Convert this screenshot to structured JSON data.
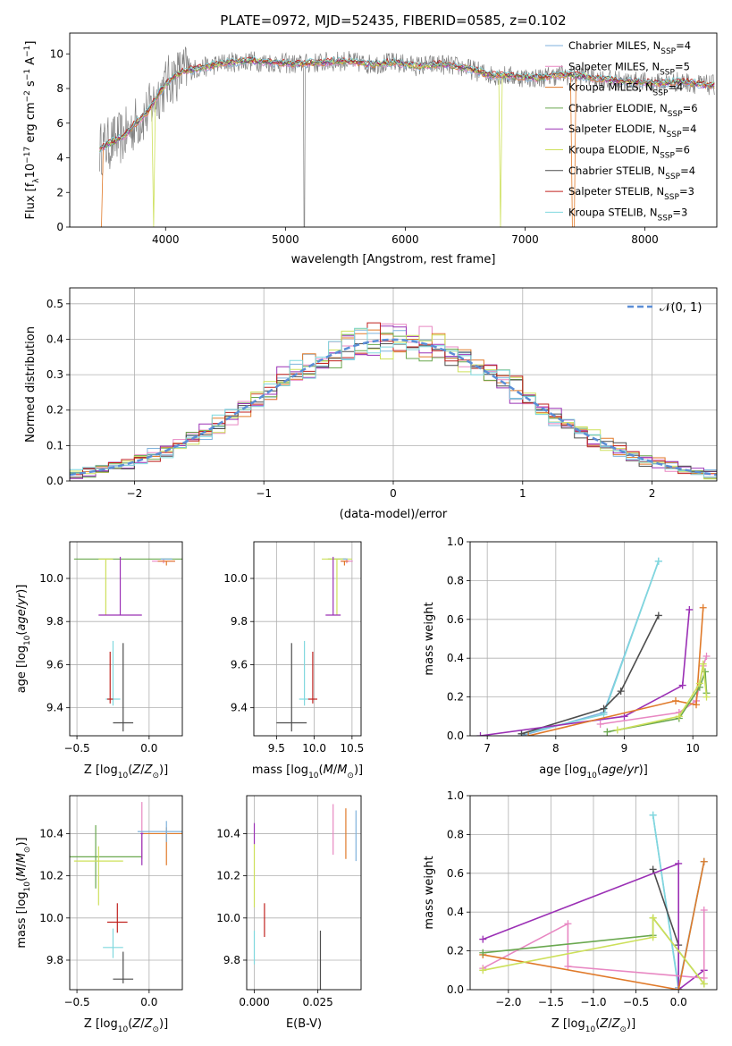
{
  "figure": {
    "title": "PLATE=0972, MJD=52435, FIBERID=0585, z=0.102"
  },
  "colors": {
    "cm": "#7fb2dc",
    "sm": "#e887c2",
    "km": "#e07a2a",
    "ce": "#6aa84f",
    "se": "#9b30b5",
    "ke": "#cde05a",
    "cs": "#4d4d4d",
    "ss": "#c0221f",
    "ks": "#7fd8de",
    "data": "#808080",
    "gauss": "#5b8ed6"
  },
  "chart_data": [
    {
      "id": "spectrum",
      "type": "line",
      "title": "PLATE=0972, MJD=52435, FIBERID=0585, z=0.102",
      "xlabel": "wavelength [Angstrom, rest frame]",
      "ylabel": "Flux [f_λ 10^-17 erg cm^-2 s^-1 A^-1]",
      "xlim": [
        3200,
        8600
      ],
      "ylim": [
        0,
        11.2
      ],
      "xticks": [
        4000,
        5000,
        6000,
        7000,
        8000
      ],
      "yticks": [
        0,
        2,
        4,
        6,
        8,
        10
      ],
      "grid": false,
      "legend_position": "top-right",
      "anchors_x": [
        3450,
        3550,
        3650,
        3750,
        3850,
        3950,
        4050,
        4150,
        4300,
        4500,
        4700,
        4900,
        5100,
        5300,
        5500,
        5700,
        5900,
        6100,
        6300,
        6500,
        6700,
        6900,
        7100,
        7300,
        7500,
        7700,
        7900,
        8100,
        8300,
        8500
      ],
      "anchors_y": [
        4.5,
        4.9,
        5.2,
        6.0,
        6.6,
        7.8,
        8.6,
        9.0,
        9.2,
        9.5,
        9.6,
        9.5,
        9.4,
        9.5,
        9.6,
        9.4,
        9.5,
        9.3,
        9.4,
        9.2,
        8.8,
        8.7,
        8.6,
        8.8,
        8.7,
        8.5,
        8.4,
        8.3,
        8.4,
        8.2
      ],
      "series": [
        {
          "key": "cm",
          "label": "Chabrier MILES, N",
          "sub": "SSP",
          "tail": "=4"
        },
        {
          "key": "sm",
          "label": "Salpeter MILES, N",
          "sub": "SSP",
          "tail": "=5"
        },
        {
          "key": "km",
          "label": "Kroupa MILES, N",
          "sub": "SSP",
          "tail": "=4"
        },
        {
          "key": "ce",
          "label": "Chabrier ELODIE, N",
          "sub": "SSP",
          "tail": "=6"
        },
        {
          "key": "se",
          "label": "Salpeter ELODIE, N",
          "sub": "SSP",
          "tail": "=4"
        },
        {
          "key": "ke",
          "label": "Kroupa ELODIE, N",
          "sub": "SSP",
          "tail": "=6"
        },
        {
          "key": "cs",
          "label": "Chabrier STELIB, N",
          "sub": "SSP",
          "tail": "=4"
        },
        {
          "key": "ss",
          "label": "Salpeter STELIB, N",
          "sub": "SSP",
          "tail": "=3"
        },
        {
          "key": "ks",
          "label": "Kroupa STELIB, N",
          "sub": "SSP",
          "tail": "=3"
        }
      ]
    },
    {
      "id": "residuals",
      "type": "line",
      "xlabel": "(data-model)/error",
      "ylabel": "Normed distribution",
      "xlim": [
        -2.5,
        2.5
      ],
      "ylim": [
        0,
        0.545
      ],
      "xticks": [
        -2,
        -1,
        0,
        1,
        2
      ],
      "yticks": [
        0.0,
        0.1,
        0.2,
        0.3,
        0.4,
        0.5
      ],
      "grid": true,
      "legend_position": "top-right",
      "legend_label": "𝒩(0, 1)",
      "bin_width": 0.1
    },
    {
      "id": "age_vs_Z",
      "type": "scatter",
      "xlabel": "Z [log10(Z/Z⊙)]",
      "ylabel": "age  [log10(age/yr)]",
      "xlim": [
        -0.55,
        0.23
      ],
      "ylim": [
        9.27,
        10.17
      ],
      "xticks": [
        -0.5,
        0.0
      ],
      "yticks": [
        9.4,
        9.6,
        9.8,
        10.0
      ],
      "grid": true,
      "points": [
        {
          "key": "ce",
          "x": -0.1,
          "y": 10.09,
          "xe": 0.42,
          "ye": [
            0.0,
            0.0
          ]
        },
        {
          "key": "ke",
          "x": -0.3,
          "y": 10.09,
          "xe": 0.05,
          "ye": [
            0.26,
            0.0
          ]
        },
        {
          "key": "sm",
          "x": 0.1,
          "y": 10.08,
          "xe": 0.08,
          "ye": [
            0.01,
            0.01
          ]
        },
        {
          "key": "km",
          "x": 0.12,
          "y": 10.08,
          "xe": 0.06,
          "ye": [
            0.02,
            0.0
          ]
        },
        {
          "key": "cm",
          "x": 0.12,
          "y": 10.09,
          "xe": 0.04,
          "ye": [
            0.0,
            0.0
          ]
        },
        {
          "key": "se",
          "x": -0.2,
          "y": 9.83,
          "xe": 0.15,
          "ye": [
            0.0,
            0.27
          ]
        },
        {
          "key": "ks",
          "x": -0.25,
          "y": 9.44,
          "xe": 0.05,
          "ye": [
            0.03,
            0.27
          ]
        },
        {
          "key": "ss",
          "x": -0.27,
          "y": 9.44,
          "xe": 0.02,
          "ye": [
            0.02,
            0.22
          ]
        },
        {
          "key": "cs",
          "x": -0.18,
          "y": 9.33,
          "xe": 0.07,
          "ye": [
            0.04,
            0.37
          ]
        }
      ]
    },
    {
      "id": "age_vs_mass",
      "type": "scatter",
      "xlabel": "mass [log10(M/M⊙)]",
      "ylabel": "",
      "xlim": [
        9.2,
        10.62
      ],
      "ylim": [
        9.27,
        10.17
      ],
      "xticks": [
        9.5,
        10.0,
        10.5
      ],
      "xtick_labels": [
        "9.5",
        "10.0",
        "10.5"
      ],
      "yticks": [
        9.4,
        9.6,
        9.8,
        10.0
      ],
      "grid": true,
      "points": [
        {
          "key": "ce",
          "x": 10.3,
          "y": 10.09,
          "xe": 0.12,
          "ye": [
            0.0,
            0.0
          ]
        },
        {
          "key": "ke",
          "x": 10.3,
          "y": 10.09,
          "xe": 0.2,
          "ye": [
            0.26,
            0.0
          ]
        },
        {
          "key": "sm",
          "x": 10.43,
          "y": 10.08,
          "xe": 0.08,
          "ye": [
            0.01,
            0.01
          ]
        },
        {
          "key": "km",
          "x": 10.4,
          "y": 10.08,
          "xe": 0.05,
          "ye": [
            0.02,
            0.0
          ]
        },
        {
          "key": "cm",
          "x": 10.41,
          "y": 10.09,
          "xe": 0.03,
          "ye": [
            0.0,
            0.0
          ]
        },
        {
          "key": "se",
          "x": 10.25,
          "y": 9.83,
          "xe": 0.1,
          "ye": [
            0.0,
            0.27
          ]
        },
        {
          "key": "ks",
          "x": 9.87,
          "y": 9.44,
          "xe": 0.07,
          "ye": [
            0.03,
            0.27
          ]
        },
        {
          "key": "ss",
          "x": 9.98,
          "y": 9.44,
          "xe": 0.06,
          "ye": [
            0.02,
            0.22
          ]
        },
        {
          "key": "cs",
          "x": 9.7,
          "y": 9.33,
          "xe": 0.2,
          "ye": [
            0.04,
            0.37
          ]
        }
      ]
    },
    {
      "id": "weight_vs_age",
      "type": "line",
      "xlabel": "age  [log10(age/yr)]",
      "ylabel": "mass weight",
      "xlim": [
        6.75,
        10.35
      ],
      "ylim": [
        0.0,
        1.0
      ],
      "xticks": [
        7,
        8,
        9,
        10
      ],
      "yticks": [
        0.0,
        0.2,
        0.4,
        0.6,
        0.8,
        1.0
      ],
      "grid": true,
      "series": [
        {
          "key": "cm",
          "x": [
            7.5,
            8.7,
            9.5
          ],
          "y": [
            0.0,
            0.12,
            0.9
          ]
        },
        {
          "key": "ks",
          "x": [
            7.5,
            8.7,
            9.5
          ],
          "y": [
            0.01,
            0.11,
            0.9
          ]
        },
        {
          "key": "cs",
          "x": [
            7.5,
            8.7,
            8.95,
            9.5
          ],
          "y": [
            0.01,
            0.14,
            0.23,
            0.62
          ]
        },
        {
          "key": "se",
          "x": [
            6.9,
            9.0,
            9.85,
            9.95
          ],
          "y": [
            0.0,
            0.1,
            0.26,
            0.65
          ]
        },
        {
          "key": "sm",
          "x": [
            8.65,
            9.8,
            10.05,
            10.15,
            10.2
          ],
          "y": [
            0.06,
            0.12,
            0.18,
            0.36,
            0.41
          ]
        },
        {
          "key": "km",
          "x": [
            7.6,
            9.75,
            10.05,
            10.15
          ],
          "y": [
            0.0,
            0.18,
            0.16,
            0.66
          ]
        },
        {
          "key": "ce",
          "x": [
            8.75,
            9.8,
            10.1,
            10.18,
            10.2
          ],
          "y": [
            0.02,
            0.09,
            0.25,
            0.33,
            0.22
          ]
        },
        {
          "key": "ke",
          "x": [
            8.9,
            9.8,
            10.1,
            10.15,
            10.2
          ],
          "y": [
            0.03,
            0.1,
            0.27,
            0.37,
            0.2
          ]
        }
      ]
    },
    {
      "id": "mass_vs_Z",
      "type": "scatter",
      "xlabel": "Z [log10(Z/Z⊙)]",
      "ylabel": "mass [log10(M/M⊙)]",
      "xlim": [
        -0.55,
        0.23
      ],
      "ylim": [
        9.66,
        10.58
      ],
      "xticks": [
        -0.5,
        0.0
      ],
      "yticks": [
        9.8,
        10.0,
        10.2,
        10.4
      ],
      "grid": true,
      "points": [
        {
          "key": "ce",
          "x": -0.37,
          "y": 10.29,
          "xe": 0.32,
          "ye": [
            0.15,
            0.15
          ]
        },
        {
          "key": "ke",
          "x": -0.35,
          "y": 10.27,
          "xe": 0.17,
          "ye": [
            0.21,
            0.07
          ]
        },
        {
          "key": "sm",
          "x": -0.05,
          "y": 10.41,
          "xe": 0.01,
          "ye": [
            0.13,
            0.14
          ]
        },
        {
          "key": "km",
          "x": 0.12,
          "y": 10.4,
          "xe": 0.17,
          "ye": [
            0.15,
            0.03
          ]
        },
        {
          "key": "cm",
          "x": 0.12,
          "y": 10.41,
          "xe": 0.2,
          "ye": [
            0.05,
            0.05
          ]
        },
        {
          "key": "se",
          "x": -0.05,
          "y": 10.4,
          "xe": 0.01,
          "ye": [
            0.15,
            0.0
          ]
        },
        {
          "key": "ss",
          "x": -0.22,
          "y": 9.98,
          "xe": 0.07,
          "ye": [
            0.05,
            0.09
          ]
        },
        {
          "key": "ks",
          "x": -0.25,
          "y": 9.86,
          "xe": 0.07,
          "ye": [
            0.05,
            0.09
          ]
        },
        {
          "key": "cs",
          "x": -0.18,
          "y": 9.71,
          "xe": 0.07,
          "ye": [
            0.02,
            0.13
          ]
        }
      ]
    },
    {
      "id": "mass_vs_EBV",
      "type": "scatter",
      "xlabel": "E(B-V)",
      "ylabel": "",
      "xlim": [
        -0.003,
        0.042
      ],
      "ylim": [
        9.66,
        10.58
      ],
      "xticks": [
        0.0,
        0.025
      ],
      "xtick_labels": [
        "0.000",
        "0.025"
      ],
      "yticks": [
        9.8,
        10.0,
        10.2,
        10.4
      ],
      "grid": true,
      "points": [
        {
          "key": "se",
          "x": 0.0,
          "y": 10.4,
          "xe": 0,
          "ye": [
            0.05,
            0.05
          ]
        },
        {
          "key": "ke",
          "x": 0.0,
          "y": 10.2,
          "xe": 0,
          "ye": [
            0.15,
            0.15
          ]
        },
        {
          "key": "ks",
          "x": 0.0,
          "y": 9.86,
          "xe": 0,
          "ye": [
            0.08,
            0.08
          ]
        },
        {
          "key": "ss",
          "x": 0.004,
          "y": 9.99,
          "xe": 0,
          "ye": [
            0.08,
            0.08
          ]
        },
        {
          "key": "cs",
          "x": 0.026,
          "y": 9.8,
          "xe": 0,
          "ye": [
            0.14,
            0.14
          ]
        },
        {
          "key": "sm",
          "x": 0.031,
          "y": 10.42,
          "xe": 0,
          "ye": [
            0.12,
            0.12
          ]
        },
        {
          "key": "km",
          "x": 0.036,
          "y": 10.4,
          "xe": 0,
          "ye": [
            0.12,
            0.12
          ]
        },
        {
          "key": "cm",
          "x": 0.04,
          "y": 10.39,
          "xe": 0,
          "ye": [
            0.12,
            0.12
          ]
        }
      ]
    },
    {
      "id": "weight_vs_Z",
      "type": "line",
      "xlabel": "Z [log10(Z/Z⊙)]",
      "ylabel": "mass weight",
      "xlim": [
        -2.45,
        0.45
      ],
      "ylim": [
        0.0,
        1.0
      ],
      "xticks": [
        -2.0,
        -1.5,
        -1.0,
        -0.5,
        0.0
      ],
      "xtick_labels": [
        "−2.0",
        "−1.5",
        "−1.0",
        "−0.5",
        "0.0"
      ],
      "yticks": [
        0.0,
        0.2,
        0.4,
        0.6,
        0.8,
        1.0
      ],
      "grid": true,
      "series": [
        {
          "key": "cm",
          "x": [
            -0.3,
            0.0,
            0.3
          ],
          "y": [
            0.9,
            0.01,
            0.66
          ]
        },
        {
          "key": "ks",
          "x": [
            -0.3,
            0.0,
            0.3
          ],
          "y": [
            0.9,
            0.0,
            0.66
          ]
        },
        {
          "key": "cs",
          "x": [
            -0.3,
            0.0,
            0.0
          ],
          "y": [
            0.62,
            0.23,
            0.0
          ]
        },
        {
          "key": "se",
          "x": [
            -2.3,
            0.0,
            0.0,
            0.3
          ],
          "y": [
            0.26,
            0.65,
            0.0,
            0.1
          ]
        },
        {
          "key": "sm",
          "x": [
            -2.3,
            -1.3,
            -1.3,
            0.3,
            0.3
          ],
          "y": [
            0.11,
            0.34,
            0.12,
            0.06,
            0.41
          ]
        },
        {
          "key": "km",
          "x": [
            -2.3,
            0.0,
            0.3
          ],
          "y": [
            0.18,
            0.0,
            0.66
          ]
        },
        {
          "key": "ce",
          "x": [
            -2.3,
            -0.3,
            -0.3,
            0.3
          ],
          "y": [
            0.19,
            0.28,
            0.37,
            0.03
          ]
        },
        {
          "key": "ke",
          "x": [
            -2.3,
            -0.3,
            -0.3,
            0.3
          ],
          "y": [
            0.1,
            0.27,
            0.37,
            0.03
          ]
        }
      ]
    }
  ]
}
